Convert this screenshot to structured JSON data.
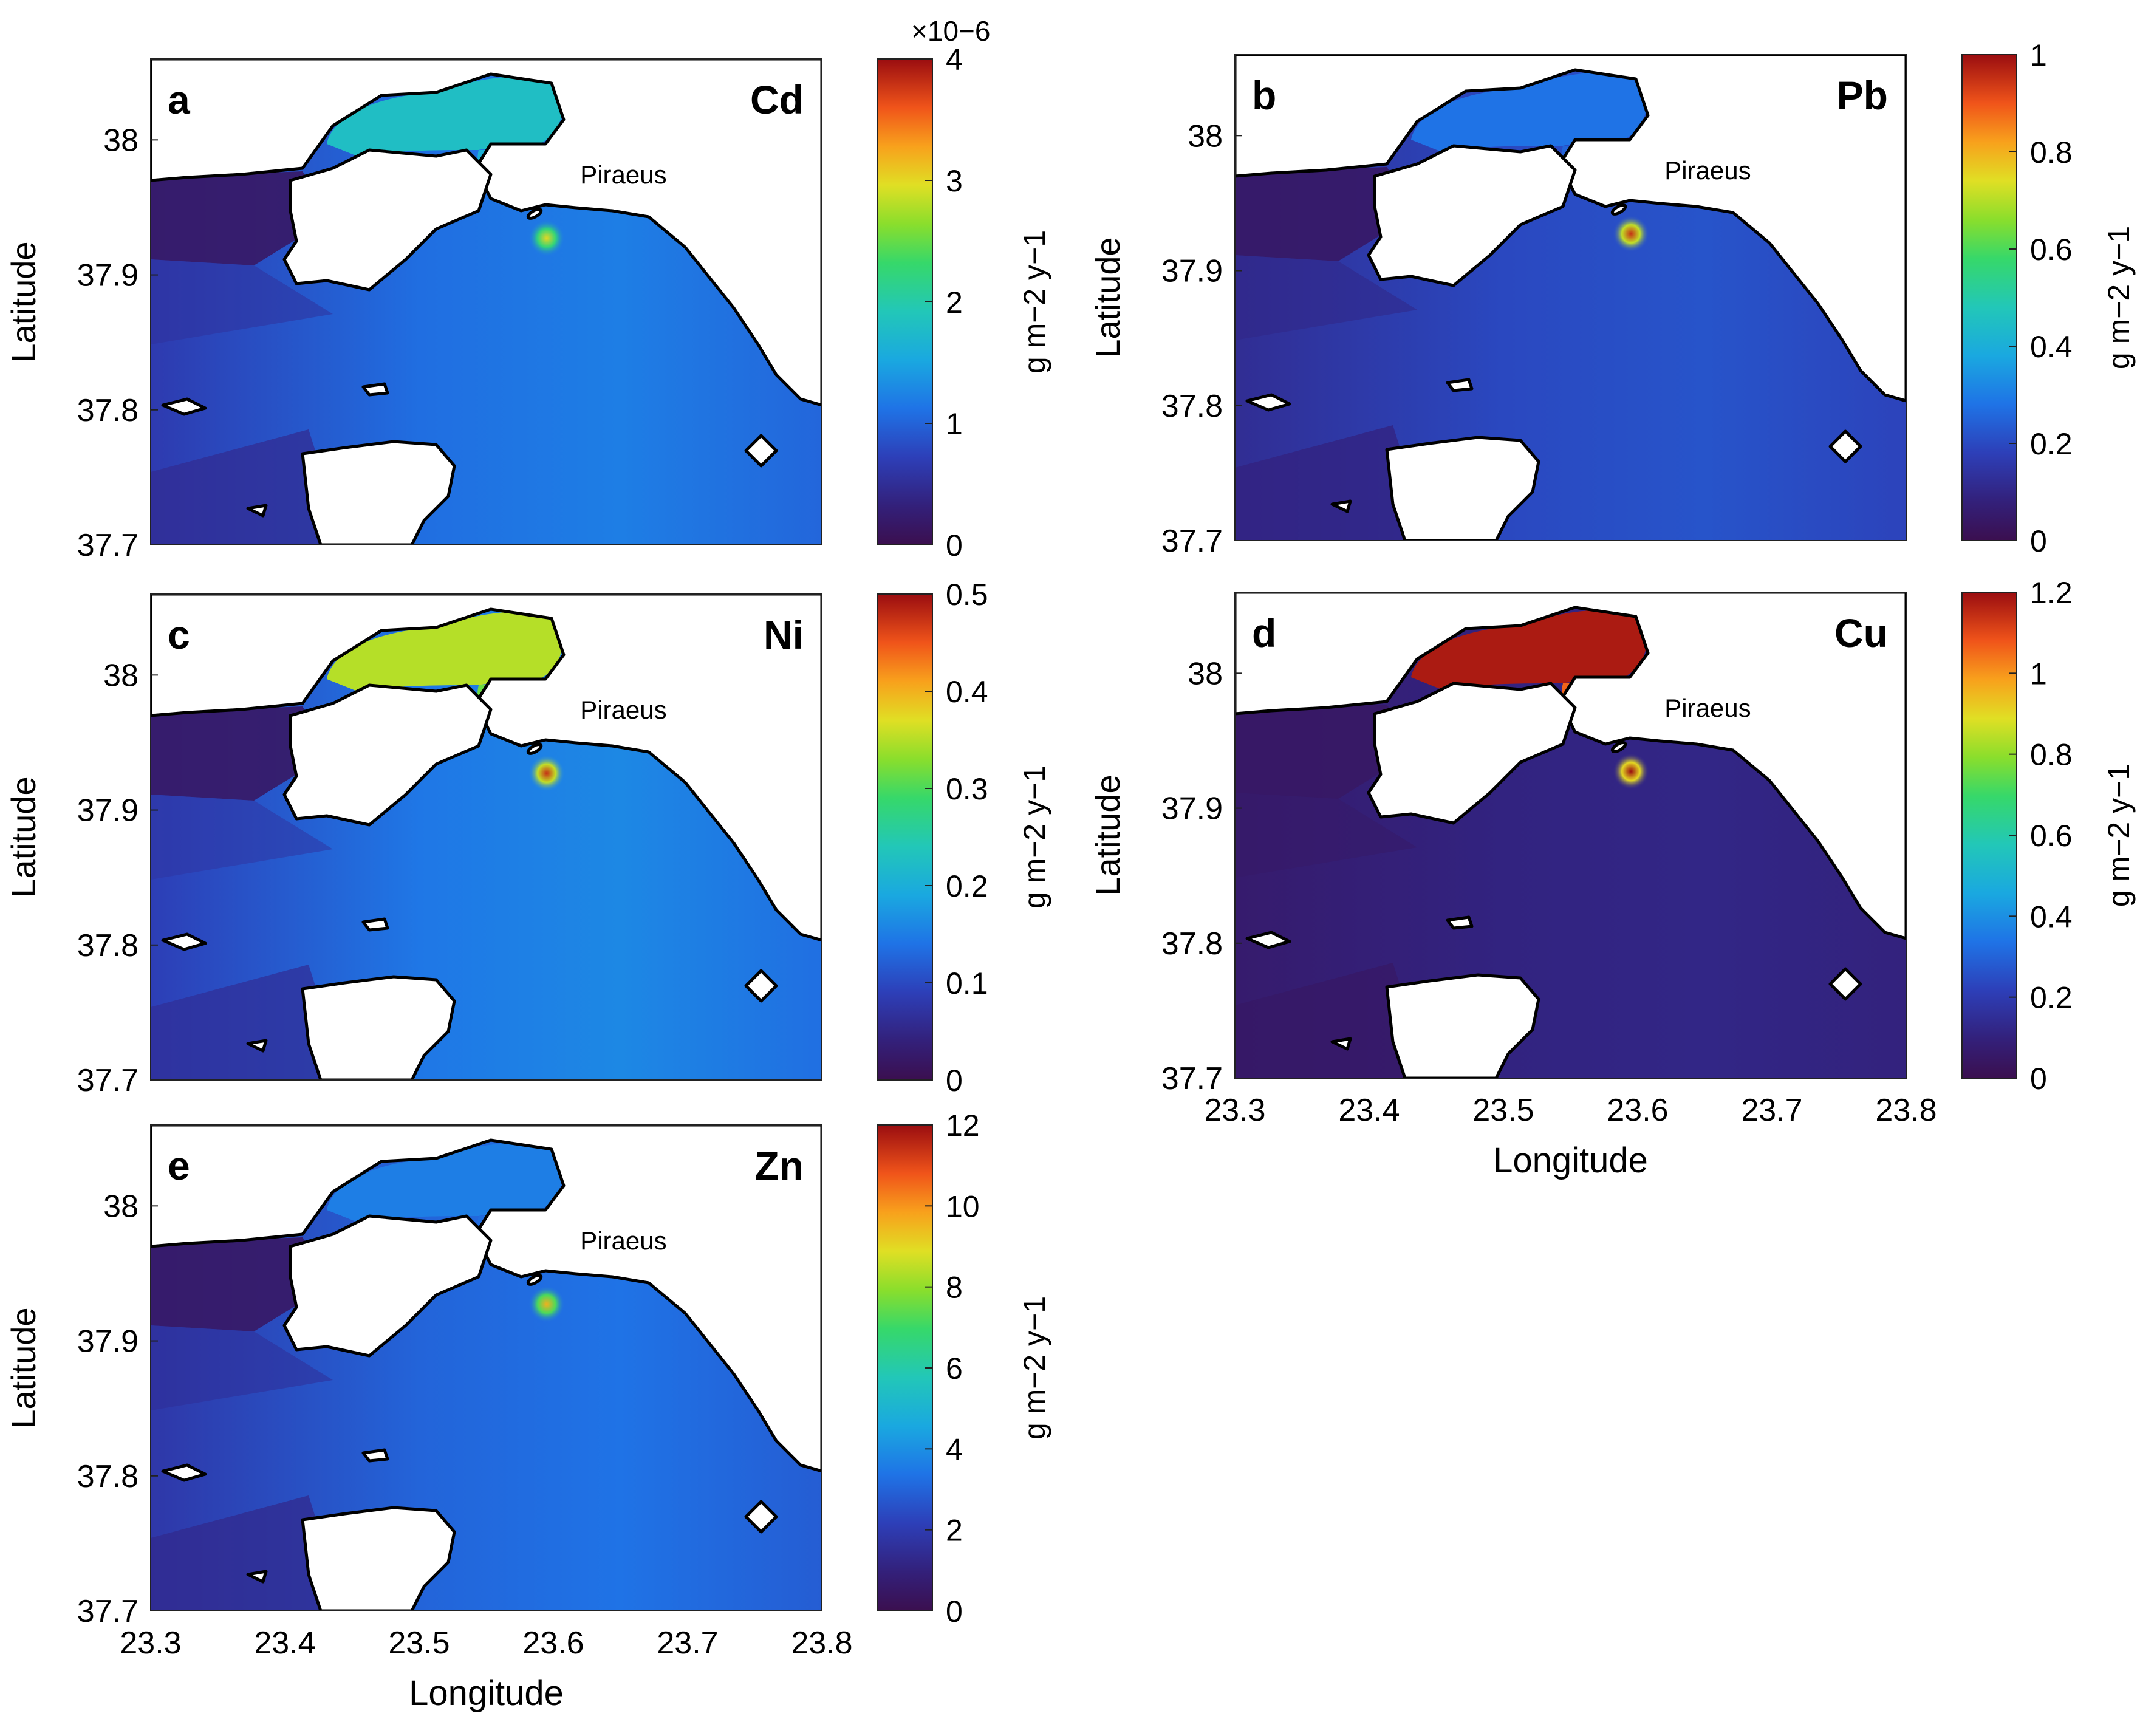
{
  "chart_data": [
    {
      "type": "heatmap",
      "panel": "a",
      "metal": "Cd",
      "place_label": "Piraeus",
      "xlabel": "",
      "ylabel": "Latitude",
      "x_ticks": [],
      "y_ticks": [
        "37.7",
        "37.8",
        "37.9",
        "38"
      ],
      "xlim": [
        23.3,
        23.8
      ],
      "ylim": [
        37.7,
        38.06
      ],
      "colorbar": {
        "label": "g m−2 y−1",
        "multiplier": "×10−6",
        "ticks": [
          "0",
          "1",
          "2",
          "3",
          "4"
        ],
        "range": [
          0,
          4
        ]
      },
      "field_level": 0.3,
      "hotspot_level": 0.75,
      "bay_level": 0.45
    },
    {
      "type": "heatmap",
      "panel": "b",
      "metal": "Pb",
      "place_label": "Piraeus",
      "xlabel": "",
      "ylabel": "Latitude",
      "x_ticks": [],
      "y_ticks": [
        "37.7",
        "37.8",
        "37.9",
        "38"
      ],
      "xlim": [
        23.3,
        23.8
      ],
      "ylim": [
        37.7,
        38.06
      ],
      "colorbar": {
        "label": "g m−2 y−1",
        "ticks": [
          "0",
          "0.2",
          "0.4",
          "0.6",
          "0.8",
          "1"
        ],
        "range": [
          0,
          1
        ]
      },
      "field_level": 0.22,
      "hotspot_level": 0.95,
      "bay_level": 0.28
    },
    {
      "type": "heatmap",
      "panel": "c",
      "metal": "Ni",
      "place_label": "Piraeus",
      "xlabel": "",
      "ylabel": "Latitude",
      "x_ticks": [],
      "y_ticks": [
        "37.7",
        "37.8",
        "37.9",
        "38"
      ],
      "xlim": [
        23.3,
        23.8
      ],
      "ylim": [
        37.7,
        38.06
      ],
      "colorbar": {
        "label": "g m−2 y−1",
        "ticks": [
          "0",
          "0.1",
          "0.2",
          "0.3",
          "0.4",
          "0.5"
        ],
        "range": [
          0,
          0.5
        ]
      },
      "field_level": 0.32,
      "hotspot_level": 0.95,
      "bay_level": 0.7
    },
    {
      "type": "heatmap",
      "panel": "d",
      "metal": "Cu",
      "place_label": "Piraeus",
      "xlabel": "Longitude",
      "ylabel": "Latitude",
      "x_ticks": [
        "23.3",
        "23.4",
        "23.5",
        "23.6",
        "23.7",
        "23.8"
      ],
      "y_ticks": [
        "37.7",
        "37.8",
        "37.9",
        "38"
      ],
      "xlim": [
        23.3,
        23.8
      ],
      "ylim": [
        37.7,
        38.06
      ],
      "colorbar": {
        "label": "g m−2 y−1",
        "ticks": [
          "0",
          "0.2",
          "0.4",
          "0.6",
          "0.8",
          "1",
          "1.2"
        ],
        "range": [
          0,
          1.2
        ]
      },
      "field_level": 0.1,
      "hotspot_level": 1.0,
      "bay_level": 0.98
    },
    {
      "type": "heatmap",
      "panel": "e",
      "metal": "Zn",
      "place_label": "Piraeus",
      "xlabel": "Longitude",
      "ylabel": "Latitude",
      "x_ticks": [
        "23.3",
        "23.4",
        "23.5",
        "23.6",
        "23.7",
        "23.8"
      ],
      "y_ticks": [
        "37.7",
        "37.8",
        "37.9",
        "38"
      ],
      "xlim": [
        23.3,
        23.8
      ],
      "ylim": [
        37.7,
        38.06
      ],
      "colorbar": {
        "label": "g m−2 y−1",
        "ticks": [
          "0",
          "2",
          "4",
          "6",
          "8",
          "10",
          "12"
        ],
        "range": [
          0,
          12
        ]
      },
      "field_level": 0.28,
      "hotspot_level": 0.8,
      "bay_level": 0.3
    }
  ]
}
